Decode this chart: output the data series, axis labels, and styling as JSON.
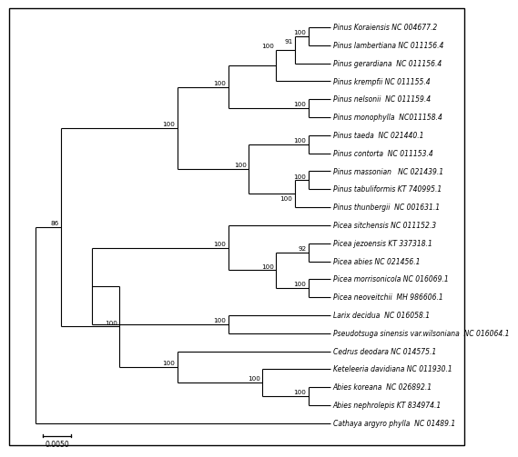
{
  "taxa": [
    {
      "name": "Pinus Koraiensis NC 004677.2",
      "y": 23
    },
    {
      "name": "Pinus lambertiana NC 011156.4",
      "y": 22
    },
    {
      "name": "Pinus gerardiana  NC 011156.4",
      "y": 21
    },
    {
      "name": "Pinus krempfii NC 011155.4",
      "y": 20
    },
    {
      "name": "Pinus nelsonii  NC 011159.4",
      "y": 19
    },
    {
      "name": "Pinus monophylla  NC011158.4",
      "y": 18
    },
    {
      "name": "Pinus taeda  NC 021440.1",
      "y": 17
    },
    {
      "name": "Pinus contorta  NC 011153.4",
      "y": 16
    },
    {
      "name": "Pinus massonian   NC 021439.1",
      "y": 15
    },
    {
      "name": "Pinus tabuliformis KT 740995.1",
      "y": 14
    },
    {
      "name": "Pinus thunbergii  NC 001631.1",
      "y": 13
    },
    {
      "name": "Picea sitchensis NC 011152.3",
      "y": 12
    },
    {
      "name": "Picea jezoensis KT 337318.1",
      "y": 11
    },
    {
      "name": "Picea abies NC 021456.1",
      "y": 10
    },
    {
      "name": "Picea morrisonicola NC 016069.1",
      "y": 9
    },
    {
      "name": "Picea neoveitchii  MH 986606.1",
      "y": 8
    },
    {
      "name": "Larix decidua  NC 016058.1",
      "y": 7
    },
    {
      "name": "Pseudotsuga sinensis var.wilsoniana  NC 016064.1",
      "y": 6
    },
    {
      "name": "Cedrus deodara NC 014575.1",
      "y": 5
    },
    {
      "name": "Keteleeria davidiana NC 011930.1",
      "y": 4
    },
    {
      "name": "Abies koreana  NC 026892.1",
      "y": 3
    },
    {
      "name": "Abies nephrolepis KT 834974.1",
      "y": 2
    },
    {
      "name": "Cathaya argyro phylla  NC 01489.1",
      "y": 1
    }
  ],
  "line_color": "#000000",
  "text_color": "#000000",
  "background_color": "#ffffff",
  "fig_width": 5.0,
  "fig_height": 4.81,
  "scale_label": "0.0050"
}
